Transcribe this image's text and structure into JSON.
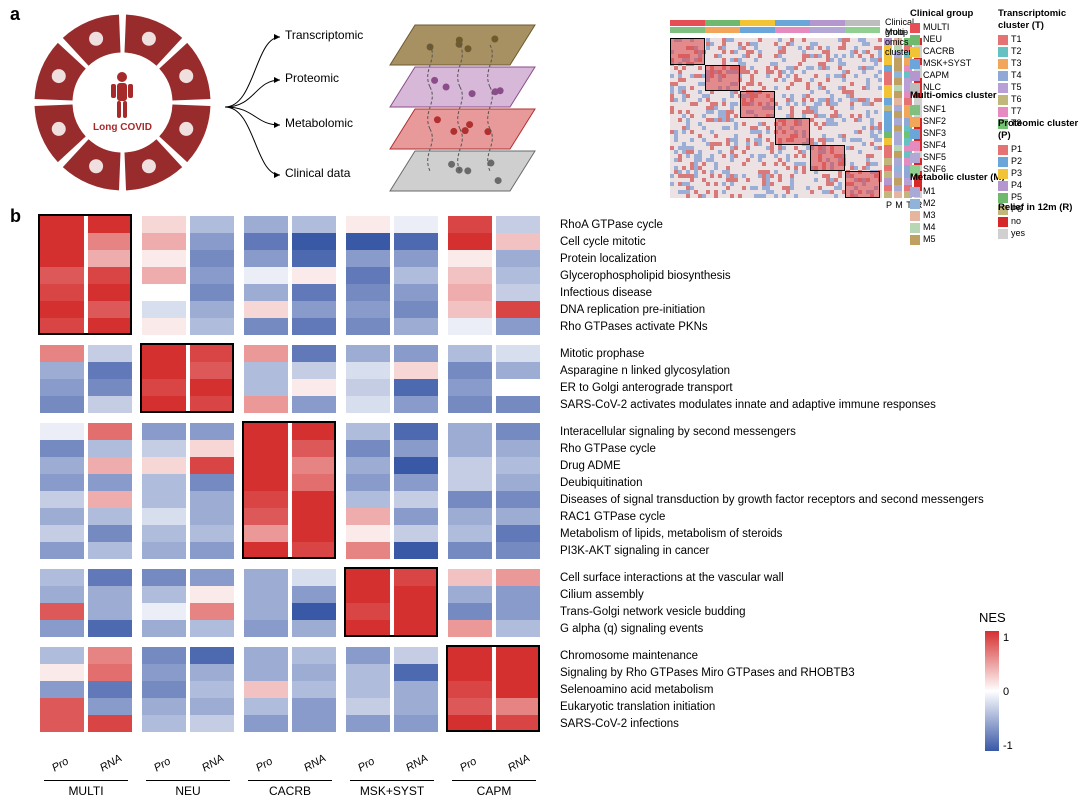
{
  "panelA": {
    "label": "a",
    "center_text": "Long COVID",
    "center_color": "#a62a2a",
    "wedge_color": "#982b2b",
    "omics_layers": [
      {
        "label": "Transcriptomic",
        "fill": "#a79162",
        "stroke": "#6e5a2f",
        "dot": "#6e5a2f"
      },
      {
        "label": "Proteomic",
        "fill": "#d8b8d8",
        "stroke": "#8a4d8a",
        "dot": "#8a4d8a"
      },
      {
        "label": "Metabolomic",
        "fill": "#e89a9a",
        "stroke": "#b03030",
        "dot": "#b03030"
      },
      {
        "label": "Clinical data",
        "fill": "#cfcfcf",
        "stroke": "#6a6a6a",
        "dot": "#6a6a6a"
      }
    ],
    "heatmap": {
      "top_annotations": [
        {
          "label": "Clinical group",
          "key": "clinical"
        },
        {
          "label": "Multi-omics cluster",
          "key": "multiomics"
        }
      ],
      "heat_bg": "#e9dcdf",
      "diagonal_blocks": 6,
      "diag_color": "#d04648",
      "side_tracks": [
        "P",
        "M",
        "T",
        "R"
      ]
    },
    "legends": {
      "clinical_group": {
        "title": "Clinical group",
        "items": [
          {
            "label": "MULTI",
            "color": "#e64d55"
          },
          {
            "label": "NEU",
            "color": "#6fb96f"
          },
          {
            "label": "CACRB",
            "color": "#f2c335"
          },
          {
            "label": "MSK+SYST",
            "color": "#6aa6d9"
          },
          {
            "label": "CAPM",
            "color": "#b597cf"
          },
          {
            "label": "NLC",
            "color": "#bdbdbd"
          }
        ]
      },
      "multiomics": {
        "title": "Multi-omics cluster",
        "items": [
          {
            "label": "SNF1",
            "color": "#7fbf7f"
          },
          {
            "label": "SNF2",
            "color": "#f2a65a"
          },
          {
            "label": "SNF3",
            "color": "#6aa6d9"
          },
          {
            "label": "SNF4",
            "color": "#e58bc0"
          },
          {
            "label": "SNF5",
            "color": "#b3a7d6"
          },
          {
            "label": "SNF6",
            "color": "#8fcf8f"
          }
        ]
      },
      "metabolic": {
        "title": "Metabolic cluster (M)",
        "items": [
          {
            "label": "M1",
            "color": "#a9a9d6"
          },
          {
            "label": "M2",
            "color": "#8fb3d9"
          },
          {
            "label": "M3",
            "color": "#e5b5a0"
          },
          {
            "label": "M4",
            "color": "#b8d6b3"
          },
          {
            "label": "M5",
            "color": "#c0a060"
          }
        ]
      },
      "transcriptomic": {
        "title": "Transcriptomic cluster (T)",
        "items": [
          {
            "label": "T1",
            "color": "#e57373"
          },
          {
            "label": "T2",
            "color": "#66c2c2"
          },
          {
            "label": "T3",
            "color": "#f2a65a"
          },
          {
            "label": "T4",
            "color": "#8fa8d6"
          },
          {
            "label": "T5",
            "color": "#b8a0d6"
          },
          {
            "label": "T6",
            "color": "#c2b77a"
          },
          {
            "label": "T7",
            "color": "#e58bc0"
          },
          {
            "label": "T8",
            "color": "#6fc26f"
          }
        ]
      },
      "proteomic": {
        "title": "Proteomic cluster (P)",
        "items": [
          {
            "label": "P1",
            "color": "#e57373"
          },
          {
            "label": "P2",
            "color": "#6aa6d9"
          },
          {
            "label": "P3",
            "color": "#f2c335"
          },
          {
            "label": "P4",
            "color": "#b597cf"
          },
          {
            "label": "P5",
            "color": "#6fb96f"
          },
          {
            "label": "P6",
            "color": "#c2b77a"
          }
        ]
      },
      "relief": {
        "title": "Relief in 12m (R)",
        "items": [
          {
            "label": "no",
            "color": "#d62828"
          },
          {
            "label": "yes",
            "color": "#d0d0d0"
          }
        ]
      }
    }
  },
  "panelB": {
    "label": "b",
    "groups": [
      "MULTI",
      "NEU",
      "CACRB",
      "MSK+SYST",
      "CAPM"
    ],
    "sublabels": [
      "Pro",
      "RNA"
    ],
    "blocks": [
      {
        "rows": [
          {
            "label": "RhoA GTPase cycle",
            "vals": [
              [
                1.2,
                1.3
              ],
              [
                0.2,
                -0.4
              ],
              [
                -0.5,
                -0.4
              ],
              [
                0.1,
                -0.1
              ],
              [
                0.9,
                -0.3
              ]
            ]
          },
          {
            "label": "Cell cycle mitotic",
            "vals": [
              [
                1.1,
                0.6
              ],
              [
                0.4,
                -0.6
              ],
              [
                -0.8,
                -1.0
              ],
              [
                -1.2,
                -0.9
              ],
              [
                1.0,
                0.3
              ]
            ]
          },
          {
            "label": "Protein localization",
            "vals": [
              [
                1.0,
                0.4
              ],
              [
                0.1,
                -0.7
              ],
              [
                -0.6,
                -0.9
              ],
              [
                -0.6,
                -0.6
              ],
              [
                0.1,
                -0.5
              ]
            ]
          },
          {
            "label": "Glycerophospholipid biosynthesis",
            "vals": [
              [
                0.8,
                0.9
              ],
              [
                0.4,
                -0.6
              ],
              [
                -0.1,
                0.1
              ],
              [
                -0.8,
                -0.4
              ],
              [
                0.3,
                -0.4
              ]
            ]
          },
          {
            "label": "Infectious disease",
            "vals": [
              [
                0.9,
                1.2
              ],
              [
                0.0,
                -0.7
              ],
              [
                -0.5,
                -0.8
              ],
              [
                -0.7,
                -0.6
              ],
              [
                0.4,
                -0.3
              ]
            ]
          },
          {
            "label": "DNA replication pre-initiation",
            "vals": [
              [
                1.0,
                0.8
              ],
              [
                -0.2,
                -0.5
              ],
              [
                0.2,
                -0.6
              ],
              [
                -0.6,
                -0.7
              ],
              [
                0.3,
                0.9
              ]
            ]
          },
          {
            "label": "Rho GTPases activate PKNs",
            "vals": [
              [
                0.9,
                1.1
              ],
              [
                0.1,
                -0.4
              ],
              [
                -0.7,
                -0.8
              ],
              [
                -0.7,
                -0.5
              ],
              [
                -0.1,
                -0.6
              ]
            ]
          }
        ],
        "highlight": 0
      },
      {
        "rows": [
          {
            "label": "Mitotic prophase",
            "vals": [
              [
                0.6,
                -0.3
              ],
              [
                1.1,
                0.9
              ],
              [
                0.5,
                -0.8
              ],
              [
                -0.5,
                -0.6
              ],
              [
                -0.4,
                -0.2
              ]
            ]
          },
          {
            "label": "Asparagine n linked glycosylation",
            "vals": [
              [
                -0.5,
                -0.8
              ],
              [
                1.0,
                0.8
              ],
              [
                -0.4,
                -0.3
              ],
              [
                -0.2,
                0.2
              ],
              [
                -0.7,
                -0.5
              ]
            ]
          },
          {
            "label": "ER to Golgi anterograde transport",
            "vals": [
              [
                -0.6,
                -0.7
              ],
              [
                0.9,
                1.0
              ],
              [
                -0.4,
                0.1
              ],
              [
                -0.3,
                -0.9
              ],
              [
                -0.6,
                0.0
              ]
            ]
          },
          {
            "label": "SARS-CoV-2 activates modulates innate and adaptive immune responses",
            "vals": [
              [
                -0.7,
                -0.3
              ],
              [
                1.0,
                0.9
              ],
              [
                0.5,
                -0.6
              ],
              [
                -0.2,
                -0.6
              ],
              [
                -0.7,
                -0.7
              ]
            ]
          }
        ],
        "highlight": 1
      },
      {
        "rows": [
          {
            "label": "Interacellular signaling by second messengers",
            "vals": [
              [
                -0.1,
                0.7
              ],
              [
                -0.6,
                -0.6
              ],
              [
                1.0,
                1.2
              ],
              [
                -0.4,
                -0.9
              ],
              [
                -0.5,
                -0.7
              ]
            ]
          },
          {
            "label": "Rho GTPase cycle",
            "vals": [
              [
                -0.7,
                -0.4
              ],
              [
                -0.3,
                0.2
              ],
              [
                1.2,
                0.8
              ],
              [
                -0.7,
                -0.6
              ],
              [
                -0.5,
                -0.5
              ]
            ]
          },
          {
            "label": "Drug ADME",
            "vals": [
              [
                -0.5,
                0.4
              ],
              [
                0.2,
                0.9
              ],
              [
                1.3,
                0.6
              ],
              [
                -0.5,
                -1.0
              ],
              [
                -0.3,
                -0.4
              ]
            ]
          },
          {
            "label": "Deubiquitination",
            "vals": [
              [
                -0.6,
                -0.6
              ],
              [
                -0.4,
                -0.7
              ],
              [
                1.1,
                0.7
              ],
              [
                -0.6,
                -0.6
              ],
              [
                -0.3,
                -0.5
              ]
            ]
          },
          {
            "label": "Diseases of signal transduction by growth factor  receptors and second messengers",
            "vals": [
              [
                -0.3,
                0.4
              ],
              [
                -0.4,
                -0.5
              ],
              [
                0.9,
                1.2
              ],
              [
                -0.4,
                -0.3
              ],
              [
                -0.7,
                -0.7
              ]
            ]
          },
          {
            "label": "RAC1 GTPase cycle",
            "vals": [
              [
                -0.5,
                -0.4
              ],
              [
                -0.2,
                -0.5
              ],
              [
                0.8,
                1.0
              ],
              [
                0.4,
                -0.6
              ],
              [
                -0.5,
                -0.5
              ]
            ]
          },
          {
            "label": "Metabolism of lipids, metabolism of steroids",
            "vals": [
              [
                -0.3,
                -0.7
              ],
              [
                -0.4,
                -0.4
              ],
              [
                0.5,
                1.3
              ],
              [
                0.1,
                -0.3
              ],
              [
                -0.4,
                -0.8
              ]
            ]
          },
          {
            "label": "PI3K-AKT signaling in cancer",
            "vals": [
              [
                -0.6,
                -0.4
              ],
              [
                -0.5,
                -0.6
              ],
              [
                1.0,
                0.9
              ],
              [
                0.6,
                -1.0
              ],
              [
                -0.7,
                -0.7
              ]
            ]
          }
        ],
        "highlight": 2
      },
      {
        "rows": [
          {
            "label": "Cell surface interactions at the vascular wall",
            "vals": [
              [
                -0.4,
                -0.8
              ],
              [
                -0.7,
                -0.6
              ],
              [
                -0.5,
                -0.2
              ],
              [
                1.2,
                0.9
              ],
              [
                0.3,
                0.5
              ]
            ]
          },
          {
            "label": "Cilium assembly",
            "vals": [
              [
                -0.5,
                -0.5
              ],
              [
                -0.4,
                0.1
              ],
              [
                -0.5,
                -0.6
              ],
              [
                1.1,
                1.0
              ],
              [
                -0.5,
                -0.6
              ]
            ]
          },
          {
            "label": "Trans-Golgi network vesicle budding",
            "vals": [
              [
                0.8,
                -0.5
              ],
              [
                -0.1,
                0.6
              ],
              [
                -0.5,
                -1.0
              ],
              [
                0.9,
                1.1
              ],
              [
                -0.7,
                -0.6
              ]
            ]
          },
          {
            "label": "G alpha (q) signaling events",
            "vals": [
              [
                -0.6,
                -0.9
              ],
              [
                -0.5,
                -0.4
              ],
              [
                -0.6,
                -0.5
              ],
              [
                1.2,
                1.0
              ],
              [
                0.5,
                -0.4
              ]
            ]
          }
        ],
        "highlight": 3
      },
      {
        "rows": [
          {
            "label": "Chromosome maintenance",
            "vals": [
              [
                -0.4,
                0.6
              ],
              [
                -0.7,
                -0.9
              ],
              [
                -0.5,
                -0.4
              ],
              [
                -0.6,
                -0.3
              ],
              [
                1.3,
                1.0
              ]
            ]
          },
          {
            "label": "Signaling by Rho GTPases Miro GTPases and RHOBTB3",
            "vals": [
              [
                0.1,
                0.7
              ],
              [
                -0.6,
                -0.5
              ],
              [
                -0.5,
                -0.5
              ],
              [
                -0.4,
                -0.9
              ],
              [
                1.0,
                1.1
              ]
            ]
          },
          {
            "label": "Selenoamino acid metabolism",
            "vals": [
              [
                -0.6,
                -0.8
              ],
              [
                -0.7,
                -0.4
              ],
              [
                0.3,
                -0.4
              ],
              [
                -0.4,
                -0.5
              ],
              [
                0.9,
                1.2
              ]
            ]
          },
          {
            "label": "Eukaryotic translation initiation",
            "vals": [
              [
                0.8,
                -0.6
              ],
              [
                -0.5,
                -0.5
              ],
              [
                -0.4,
                -0.6
              ],
              [
                -0.3,
                -0.5
              ],
              [
                0.8,
                0.6
              ]
            ]
          },
          {
            "label": "SARS-CoV-2 infections",
            "vals": [
              [
                0.8,
                0.9
              ],
              [
                -0.4,
                -0.3
              ],
              [
                -0.6,
                -0.6
              ],
              [
                -0.6,
                -0.6
              ],
              [
                1.0,
                0.9
              ]
            ]
          }
        ],
        "highlight": 4
      }
    ],
    "colorbar": {
      "title": "NES",
      "min": -1,
      "mid": 0,
      "max": 1,
      "neg": "#3958a6",
      "zero": "#ffffff",
      "pos": "#d53030"
    }
  }
}
